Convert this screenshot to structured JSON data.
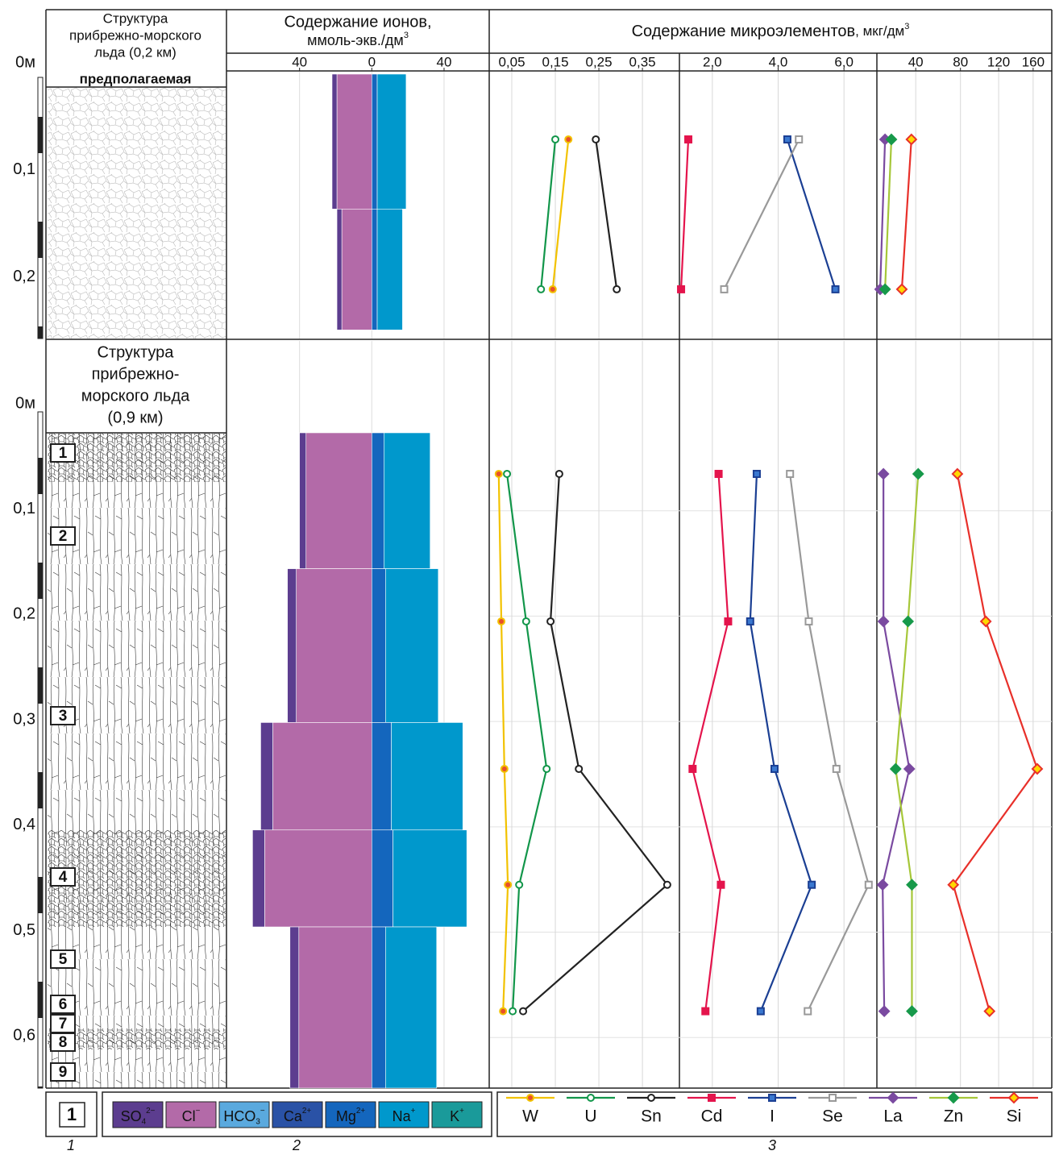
{
  "structure": {
    "titles": [
      [
        "Структура",
        "прибрежно-морского",
        "льда (0,2 км)"
      ],
      [
        "Структура",
        "прибрежно-",
        "морского льда",
        "(0,9 км)"
      ]
    ],
    "note": "предполагаемая",
    "layer_labels": [
      "1",
      "2",
      "3",
      "4",
      "5",
      "6",
      "7",
      "8",
      "9"
    ]
  },
  "sections": [
    {
      "ylim": [
        0,
        0.256
      ],
      "yticks": [
        {
          "value": 0,
          "label": "0м"
        },
        {
          "value": 0.1,
          "label": "0,1"
        },
        {
          "value": 0.2,
          "label": "0,2"
        }
      ],
      "layers": [
        [
          0.009,
          0.135
        ],
        [
          0.135,
          0.248
        ]
      ],
      "depths": [
        0.07,
        0.21
      ]
    },
    {
      "ylim": [
        0,
        0.648
      ],
      "yticks": [
        {
          "value": 0,
          "label": "0м"
        },
        {
          "value": 0.1,
          "label": "0,1"
        },
        {
          "value": 0.2,
          "label": "0,2"
        },
        {
          "value": 0.3,
          "label": "0,3"
        },
        {
          "value": 0.4,
          "label": "0,4"
        },
        {
          "value": 0.5,
          "label": "0,5"
        },
        {
          "value": 0.6,
          "label": "0,6"
        }
      ],
      "layers": [
        [
          0.026,
          0.155
        ],
        [
          0.155,
          0.301
        ],
        [
          0.301,
          0.403
        ],
        [
          0.403,
          0.495
        ],
        [
          0.495,
          0.648
        ]
      ],
      "depths": [
        0.065,
        0.205,
        0.345,
        0.455,
        0.575
      ],
      "grid": true
    }
  ],
  "chart_data": [
    {
      "type": "ion-bar",
      "title": [
        "Содержание ионов,",
        "ммоль-экв./дм"
      ],
      "title_sup": "3",
      "xlim": [
        -80,
        65
      ],
      "xticks": [
        {
          "value": -40,
          "label": "40"
        },
        0,
        40
      ],
      "series": [
        {
          "name": "SO",
          "sub": "4",
          "sup": "2−",
          "color": "#5c3d8f",
          "side": "left",
          "values": [
            [
              2.7,
              2.7
            ],
            [
              3.6,
              4.9,
              6.7,
              6.7,
              4.9
            ]
          ]
        },
        {
          "name": "Cl",
          "sup": "−",
          "color": "#b36aa8",
          "side": "left",
          "values": [
            [
              19.3,
              16.6
            ],
            [
              36.4,
              41.8,
              54.8,
              59.3,
              40.4
            ]
          ]
        },
        {
          "name": "HCO",
          "sub": "3",
          "sup": "−",
          "color": "#5aa9de",
          "side": "right"
        },
        {
          "name": "Ca",
          "sup": "2+",
          "color": "#2a52a6",
          "side": "right"
        },
        {
          "name": "Mg",
          "sup": "2+",
          "color": "#1466bd",
          "side": "right",
          "values": [
            [
              3,
              3
            ],
            [
              6.7,
              7.6,
              10.8,
              11.7,
              7.6
            ]
          ]
        },
        {
          "name": "Na",
          "sup": "+",
          "color": "#0098cc",
          "side": "right",
          "values": [
            [
              16,
              14
            ],
            [
              25.6,
              29.2,
              39.6,
              40.9,
              28.3
            ]
          ]
        },
        {
          "name": "K",
          "sup": "+",
          "color": "#1a9a9a",
          "side": "right"
        }
      ]
    },
    {
      "type": "profile",
      "title": "Содержание микроэлементов",
      "unit": ", мкг/дм",
      "unit_sup": "3",
      "panels": [
        {
          "xlim": [
            0,
            0.435
          ],
          "xticks": [
            {
              "value": 0.05,
              "label": "0,05"
            },
            {
              "value": 0.15,
              "label": "0,15"
            },
            {
              "value": 0.25,
              "label": "0,25"
            },
            {
              "value": 0.35,
              "label": "0,35"
            }
          ],
          "series": [
            {
              "name": "W",
              "color": "#f2c200",
              "marker": "circle",
              "marker_fill": "#e8502a",
              "values": [
                [
                  0.18,
                  0.144
                ],
                [
                  0.02,
                  0.026,
                  0.033,
                  0.041,
                  0.03
                ]
              ]
            },
            {
              "name": "U",
              "color": "#12964a",
              "marker": "circle",
              "marker_fill": "#ffffff",
              "values": [
                [
                  0.15,
                  0.117
                ],
                [
                  0.039,
                  0.083,
                  0.13,
                  0.067,
                  0.052
                ]
              ]
            },
            {
              "name": "Sn",
              "color": "#222222",
              "marker": "circle",
              "marker_fill": "#ffffff",
              "values": [
                [
                  0.243,
                  0.291
                ],
                [
                  0.159,
                  0.139,
                  0.204,
                  0.407,
                  0.076
                ]
              ]
            }
          ]
        },
        {
          "xlim": [
            1,
            7
          ],
          "xticks": [
            {
              "value": 2,
              "label": "2,0"
            },
            {
              "value": 4,
              "label": "4,0"
            },
            {
              "value": 6,
              "label": "6,0"
            }
          ],
          "series": [
            {
              "name": "Cd",
              "color": "#e4144c",
              "marker": "square",
              "marker_fill": "#e4144c",
              "values": [
                [
                  1.27,
                  1.05
                ],
                [
                  2.19,
                  2.48,
                  1.4,
                  2.26,
                  1.79
                ]
              ]
            },
            {
              "name": "I",
              "color": "#1b3f93",
              "marker": "square",
              "marker_fill": "#3a78d0",
              "values": [
                [
                  4.28,
                  5.74
                ],
                [
                  3.35,
                  3.15,
                  3.89,
                  5.02,
                  3.47
                ]
              ]
            },
            {
              "name": "Se",
              "color": "#999999",
              "marker": "square",
              "marker_fill": "#ffffff",
              "values": [
                [
                  4.63,
                  2.36
                ],
                [
                  4.36,
                  4.93,
                  5.77,
                  6.75,
                  4.9
                ]
              ]
            }
          ]
        },
        {
          "xlim": [
            13.1,
            183
          ],
          "scale": "power",
          "exponent": 0.7,
          "xticks": [
            40,
            80,
            120,
            160
          ],
          "series": [
            {
              "name": "La",
              "color": "#7a4aa0",
              "marker": "diamond",
              "marker_fill": "#7a4aa0",
              "values": [
                [
                  18,
                  15
                ],
                [
                  17,
                  17,
                  35,
                  16.5,
                  17.5
                ]
              ]
            },
            {
              "name": "Zn",
              "color": "#a6c739",
              "marker": "diamond",
              "marker_fill": "#17994a",
              "marker_stroke": "#17994a",
              "values": [
                [
                  22.1,
                  18
                ],
                [
                  42,
                  34,
                  25,
                  37,
                  37
                ]
              ]
            },
            {
              "name": "Si",
              "color": "#e8302a",
              "marker": "diamond",
              "marker_fill": "#ffd800",
              "values": [
                [
                  36.6,
                  29.4
                ],
                [
                  77,
                  106,
                  165,
                  73,
                  110
                ]
              ]
            }
          ]
        }
      ]
    }
  ],
  "legend": {
    "box_label": "1",
    "captions": [
      "1",
      "2",
      "3"
    ]
  }
}
